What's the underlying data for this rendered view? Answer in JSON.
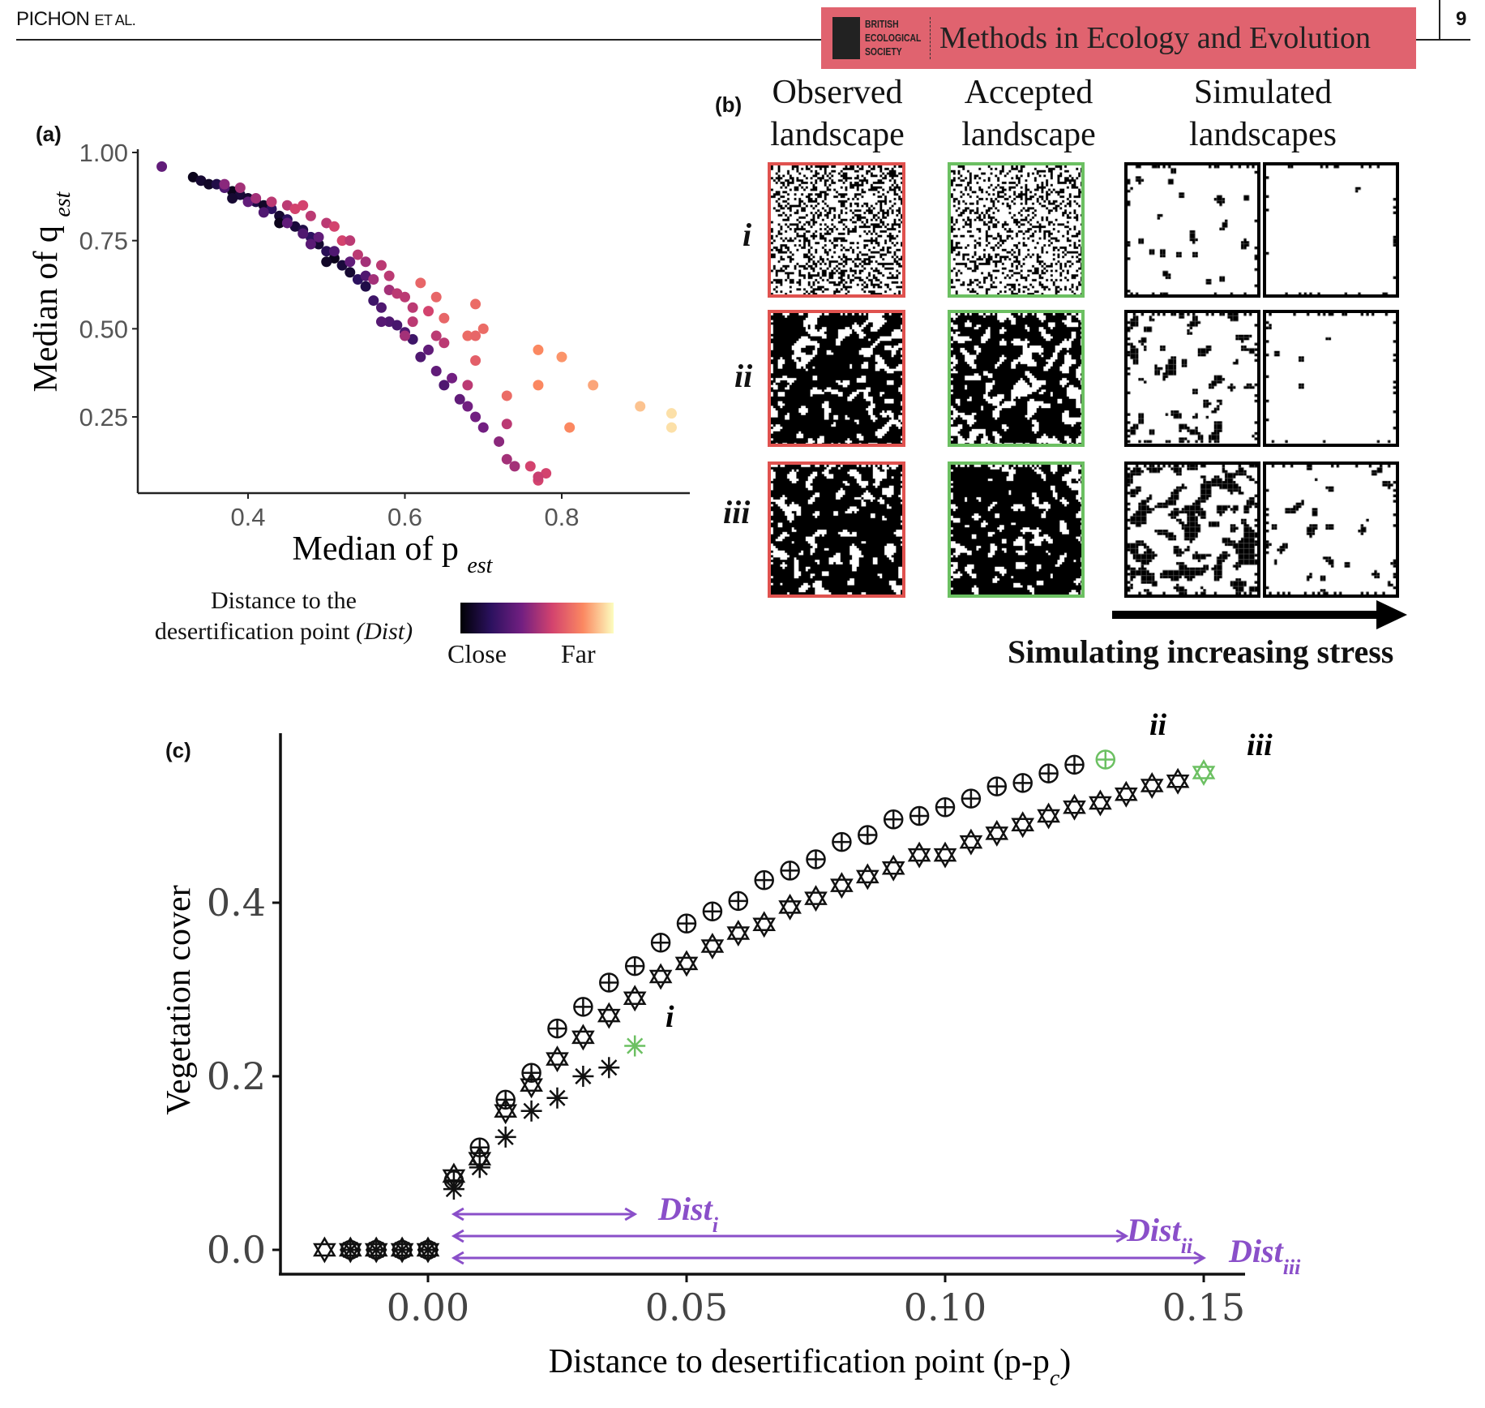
{
  "header": {
    "author": "PICHON",
    "author_suffix": "ET AL.",
    "society_lines": [
      "BRITISH",
      "ECOLOGICAL",
      "SOCIETY"
    ],
    "journal": "Methods in Ecology and Evolution",
    "page_number": "9",
    "banner_color": "#e0636f"
  },
  "panel_b": {
    "label": "(b)",
    "columns": [
      {
        "line1": "Observed",
        "line2": "landscape"
      },
      {
        "line1": "Accepted",
        "line2": "landscape"
      },
      {
        "line1": "Simulated",
        "line2": "landscapes"
      }
    ],
    "rows": [
      "i",
      "ii",
      "iii"
    ],
    "arrow_label": "Simulating increasing stress",
    "observed_border": "#e0524f",
    "accepted_border": "#6cc062"
  },
  "chart_data": [
    {
      "id": "a",
      "label": "(a)",
      "type": "scatter",
      "xlabel": "Median of p",
      "xlabel_sub": "est",
      "ylabel": "Median of q",
      "ylabel_sub": "est",
      "xlim": [
        0.27,
        0.95
      ],
      "ylim": [
        0.05,
        1.0
      ],
      "xticks": [
        "0.4",
        "0.6",
        "0.8"
      ],
      "yticks": [
        "1.00",
        "0.75",
        "0.50",
        "0.25"
      ],
      "legend": {
        "title_line1": "Distance to the",
        "title_line2": "desertification point",
        "title_italic": "(Dist)",
        "low": "Close",
        "high": "Far",
        "placement": "bottom"
      },
      "colormap": [
        "#000004",
        "#2c115f",
        "#721f81",
        "#d3436e",
        "#fb8861",
        "#fcfdbf"
      ],
      "points_p_q_dist": [
        [
          0.33,
          0.93,
          0.05
        ],
        [
          0.34,
          0.92,
          0.1
        ],
        [
          0.35,
          0.91,
          0.08
        ],
        [
          0.36,
          0.91,
          0.15
        ],
        [
          0.38,
          0.89,
          0.05
        ],
        [
          0.39,
          0.88,
          0.12
        ],
        [
          0.4,
          0.87,
          0.1
        ],
        [
          0.41,
          0.86,
          0.15
        ],
        [
          0.42,
          0.85,
          0.08
        ],
        [
          0.43,
          0.84,
          0.2
        ],
        [
          0.44,
          0.82,
          0.1
        ],
        [
          0.45,
          0.81,
          0.2
        ],
        [
          0.46,
          0.79,
          0.12
        ],
        [
          0.47,
          0.78,
          0.15
        ],
        [
          0.48,
          0.76,
          0.2
        ],
        [
          0.49,
          0.74,
          0.1
        ],
        [
          0.5,
          0.72,
          0.18
        ],
        [
          0.51,
          0.7,
          0.05
        ],
        [
          0.52,
          0.68,
          0.12
        ],
        [
          0.53,
          0.66,
          0.1
        ],
        [
          0.54,
          0.64,
          0.2
        ],
        [
          0.55,
          0.62,
          0.15
        ],
        [
          0.38,
          0.87,
          0.1
        ],
        [
          0.44,
          0.8,
          0.05
        ],
        [
          0.5,
          0.69,
          0.08
        ],
        [
          0.29,
          0.96,
          0.35
        ],
        [
          0.37,
          0.9,
          0.3
        ],
        [
          0.4,
          0.86,
          0.35
        ],
        [
          0.42,
          0.83,
          0.3
        ],
        [
          0.45,
          0.8,
          0.35
        ],
        [
          0.47,
          0.77,
          0.3
        ],
        [
          0.49,
          0.76,
          0.35
        ],
        [
          0.51,
          0.72,
          0.3
        ],
        [
          0.53,
          0.69,
          0.35
        ],
        [
          0.55,
          0.65,
          0.3
        ],
        [
          0.56,
          0.58,
          0.25
        ],
        [
          0.57,
          0.56,
          0.3
        ],
        [
          0.58,
          0.52,
          0.3
        ],
        [
          0.59,
          0.51,
          0.28
        ],
        [
          0.6,
          0.49,
          0.3
        ],
        [
          0.61,
          0.47,
          0.25
        ],
        [
          0.62,
          0.42,
          0.3
        ],
        [
          0.63,
          0.44,
          0.35
        ],
        [
          0.64,
          0.38,
          0.35
        ],
        [
          0.65,
          0.34,
          0.3
        ],
        [
          0.66,
          0.36,
          0.4
        ],
        [
          0.67,
          0.3,
          0.35
        ],
        [
          0.68,
          0.28,
          0.4
        ],
        [
          0.69,
          0.25,
          0.4
        ],
        [
          0.7,
          0.22,
          0.4
        ],
        [
          0.72,
          0.18,
          0.45
        ],
        [
          0.73,
          0.13,
          0.5
        ],
        [
          0.74,
          0.11,
          0.5
        ],
        [
          0.57,
          0.52,
          0.32
        ],
        [
          0.48,
          0.74,
          0.33
        ],
        [
          0.37,
          0.91,
          0.45
        ],
        [
          0.39,
          0.9,
          0.5
        ],
        [
          0.41,
          0.87,
          0.5
        ],
        [
          0.43,
          0.86,
          0.55
        ],
        [
          0.45,
          0.85,
          0.55
        ],
        [
          0.46,
          0.84,
          0.6
        ],
        [
          0.47,
          0.85,
          0.6
        ],
        [
          0.48,
          0.82,
          0.55
        ],
        [
          0.5,
          0.8,
          0.55
        ],
        [
          0.51,
          0.79,
          0.6
        ],
        [
          0.52,
          0.75,
          0.6
        ],
        [
          0.53,
          0.75,
          0.55
        ],
        [
          0.54,
          0.71,
          0.55
        ],
        [
          0.55,
          0.69,
          0.5
        ],
        [
          0.56,
          0.64,
          0.5
        ],
        [
          0.57,
          0.68,
          0.55
        ],
        [
          0.58,
          0.65,
          0.55
        ],
        [
          0.58,
          0.61,
          0.5
        ],
        [
          0.59,
          0.6,
          0.55
        ],
        [
          0.6,
          0.59,
          0.55
        ],
        [
          0.61,
          0.56,
          0.55
        ],
        [
          0.61,
          0.52,
          0.55
        ],
        [
          0.6,
          0.48,
          0.5
        ],
        [
          0.63,
          0.55,
          0.6
        ],
        [
          0.64,
          0.48,
          0.55
        ],
        [
          0.65,
          0.46,
          0.55
        ],
        [
          0.68,
          0.34,
          0.55
        ],
        [
          0.73,
          0.23,
          0.55
        ],
        [
          0.76,
          0.11,
          0.6
        ],
        [
          0.77,
          0.07,
          0.6
        ],
        [
          0.78,
          0.09,
          0.6
        ],
        [
          0.77,
          0.08,
          0.58
        ],
        [
          0.62,
          0.63,
          0.7
        ],
        [
          0.64,
          0.59,
          0.7
        ],
        [
          0.65,
          0.53,
          0.7
        ],
        [
          0.68,
          0.48,
          0.72
        ],
        [
          0.69,
          0.48,
          0.7
        ],
        [
          0.69,
          0.57,
          0.72
        ],
        [
          0.7,
          0.5,
          0.72
        ],
        [
          0.69,
          0.41,
          0.68
        ],
        [
          0.73,
          0.31,
          0.72
        ],
        [
          0.77,
          0.44,
          0.8
        ],
        [
          0.77,
          0.34,
          0.8
        ],
        [
          0.8,
          0.42,
          0.82
        ],
        [
          0.81,
          0.22,
          0.8
        ],
        [
          0.84,
          0.34,
          0.85
        ],
        [
          0.9,
          0.28,
          0.9
        ],
        [
          0.94,
          0.26,
          0.95
        ],
        [
          0.94,
          0.22,
          0.95
        ]
      ]
    },
    {
      "id": "c",
      "label": "(c)",
      "type": "scatter",
      "xlabel": "Distance to desertification point (p-p",
      "xlabel_sub": "c",
      "xlabel_end": ")",
      "ylabel": "Vegetation cover",
      "xlim": [
        -0.028,
        0.157
      ],
      "ylim": [
        -0.03,
        0.62
      ],
      "xticks": [
        "0.00",
        "0.05",
        "0.10",
        "0.15"
      ],
      "yticks": [
        "0.0",
        "0.2",
        "0.4"
      ],
      "highlight_color": "#6cc062",
      "arrow_color": "#8a4fc9",
      "series": [
        {
          "name": "i",
          "marker": "asterisk",
          "x": [
            -0.015,
            -0.01,
            -0.005,
            0,
            0.005,
            0.01,
            0.015,
            0.02,
            0.025,
            0.03,
            0.035,
            0.04
          ],
          "y": [
            0,
            0,
            0,
            0,
            0.07,
            0.095,
            0.13,
            0.16,
            0.175,
            0.2,
            0.21,
            0.235
          ]
        },
        {
          "name": "ii",
          "marker": "circle-plus",
          "x": [
            -0.015,
            -0.01,
            -0.005,
            0,
            0.005,
            0.01,
            0.015,
            0.02,
            0.025,
            0.03,
            0.035,
            0.04,
            0.045,
            0.05,
            0.055,
            0.06,
            0.065,
            0.07,
            0.075,
            0.08,
            0.085,
            0.09,
            0.095,
            0.1,
            0.105,
            0.11,
            0.115,
            0.12,
            0.125,
            0.131
          ],
          "y": [
            0,
            0,
            0,
            0,
            0.08,
            0.118,
            0.173,
            0.204,
            0.255,
            0.28,
            0.308,
            0.327,
            0.354,
            0.376,
            0.39,
            0.402,
            0.426,
            0.437,
            0.45,
            0.47,
            0.478,
            0.496,
            0.5,
            0.51,
            0.52,
            0.534,
            0.538,
            0.549,
            0.559,
            0.565
          ]
        },
        {
          "name": "iii",
          "marker": "hexagram",
          "x": [
            -0.02,
            -0.015,
            -0.01,
            -0.005,
            0,
            0.005,
            0.01,
            0.015,
            0.02,
            0.025,
            0.03,
            0.035,
            0.04,
            0.045,
            0.05,
            0.055,
            0.06,
            0.065,
            0.07,
            0.075,
            0.08,
            0.085,
            0.09,
            0.095,
            0.1,
            0.105,
            0.11,
            0.115,
            0.12,
            0.125,
            0.13,
            0.135,
            0.14,
            0.145,
            0.15
          ],
          "y": [
            0,
            0,
            0,
            0,
            0,
            0.085,
            0.105,
            0.16,
            0.19,
            0.22,
            0.245,
            0.27,
            0.29,
            0.315,
            0.33,
            0.35,
            0.365,
            0.375,
            0.395,
            0.405,
            0.42,
            0.43,
            0.44,
            0.455,
            0.455,
            0.47,
            0.48,
            0.49,
            0.5,
            0.51,
            0.515,
            0.525,
            0.535,
            0.54,
            0.55
          ]
        }
      ],
      "dist_arrows": [
        {
          "name": "Dist",
          "sub": "i",
          "from": 0.005,
          "to": 0.04
        },
        {
          "name": "Dist",
          "sub": "ii",
          "from": 0.005,
          "to": 0.135
        },
        {
          "name": "Dist",
          "sub": "iii",
          "from": 0.005,
          "to": 0.15
        }
      ]
    }
  ]
}
